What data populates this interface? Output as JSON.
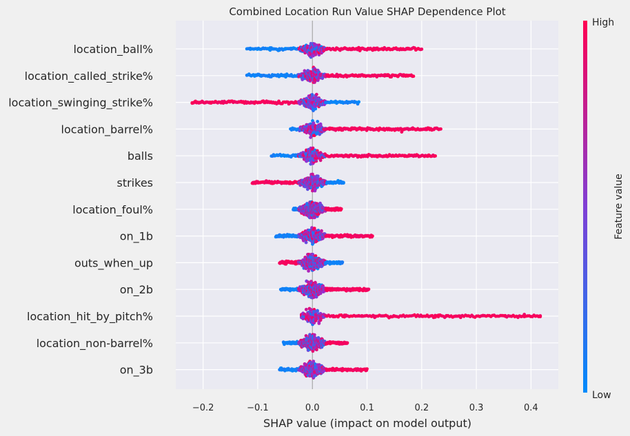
{
  "chart_data": {
    "type": "scatter",
    "subtype": "shap-beeswarm",
    "title": "Combined Location Run Value SHAP Dependence Plot",
    "xlabel": "SHAP value (impact on model output)",
    "xlim": [
      -0.25,
      0.45
    ],
    "xticks": [
      -0.2,
      -0.1,
      0.0,
      0.1,
      0.2,
      0.3,
      0.4
    ],
    "xtick_labels": [
      "−0.2",
      "−0.1",
      "0.0",
      "0.1",
      "0.2",
      "0.3",
      "0.4"
    ],
    "grid": true,
    "features": [
      {
        "name": "location_ball%",
        "min": -0.12,
        "max": 0.2
      },
      {
        "name": "location_called_strike%",
        "min": -0.12,
        "max": 0.185
      },
      {
        "name": "location_swinging_strike%",
        "min": -0.22,
        "max": 0.085
      },
      {
        "name": "location_barrel%",
        "min": -0.04,
        "max": 0.235
      },
      {
        "name": "balls",
        "min": -0.075,
        "max": 0.225
      },
      {
        "name": "strikes",
        "min": -0.11,
        "max": 0.057
      },
      {
        "name": "location_foul%",
        "min": -0.035,
        "max": 0.053
      },
      {
        "name": "on_1b",
        "min": -0.067,
        "max": 0.11
      },
      {
        "name": "outs_when_up",
        "min": -0.06,
        "max": 0.055
      },
      {
        "name": "on_2b",
        "min": -0.058,
        "max": 0.103
      },
      {
        "name": "location_hit_by_pitch%",
        "min": -0.02,
        "max": 0.417
      },
      {
        "name": "location_non-barrel%",
        "min": -0.053,
        "max": 0.064
      },
      {
        "name": "on_3b",
        "min": -0.06,
        "max": 0.1
      }
    ],
    "colorbar": {
      "label": "Feature value",
      "high_label": "High",
      "low_label": "Low",
      "low_color": "#008bfb",
      "mid_color": "#9b2bd1",
      "high_color": "#ff0052"
    }
  }
}
